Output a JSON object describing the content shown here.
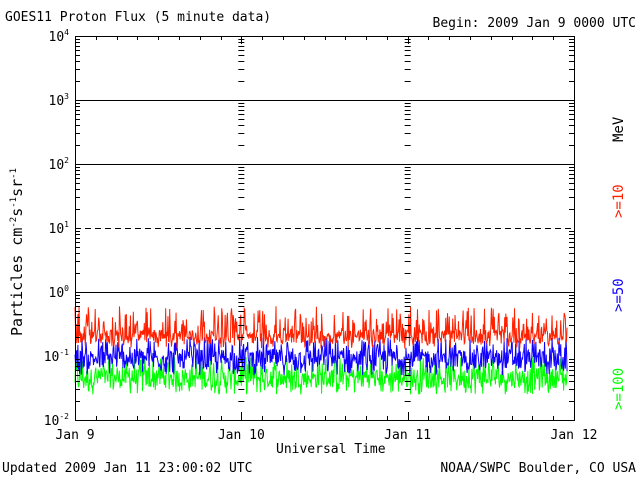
{
  "header": {
    "title": "GOES11 Proton Flux (5 minute data)",
    "begin": "Begin: 2009 Jan 9 0000 UTC"
  },
  "footer": {
    "updated": "Updated 2009 Jan 11 23:00:02 UTC",
    "credit": "NOAA/SWPC Boulder, CO USA"
  },
  "colors": {
    "ge10": "#ff2000",
    "ge50": "#1000ff",
    "ge100": "#00ff00",
    "axis": "#000000"
  },
  "chart_data": {
    "type": "line",
    "title": "GOES11 Proton Flux (5 minute data)",
    "xlabel": "Universal Time",
    "ylabel": "Particles cm⁻²s⁻¹sr⁻¹",
    "yscale": "log",
    "ylim": [
      0.01,
      10000
    ],
    "yticks": [
      {
        "value": 0.01,
        "base": "10",
        "exp": "-2"
      },
      {
        "value": 0.1,
        "base": "10",
        "exp": "-1"
      },
      {
        "value": 1,
        "base": "10",
        "exp": "0"
      },
      {
        "value": 10,
        "base": "10",
        "exp": "1"
      },
      {
        "value": 100,
        "base": "10",
        "exp": "2"
      },
      {
        "value": 1000,
        "base": "10",
        "exp": "3"
      },
      {
        "value": 10000,
        "base": "10",
        "exp": "4"
      }
    ],
    "x_categories": [
      "Jan 9",
      "Jan 10",
      "Jan 11",
      "Jan 12"
    ],
    "xlim": [
      "2009-01-09 00:00",
      "2009-01-12 00:00"
    ],
    "data_end": "2009-01-11 23:00",
    "reference_lines": [
      {
        "value": 1,
        "style": "solid"
      },
      {
        "value": 10,
        "style": "dashed"
      },
      {
        "value": 100,
        "style": "solid"
      },
      {
        "value": 1000,
        "style": "solid"
      }
    ],
    "legend_position": "right",
    "legend_unit": "MeV",
    "series": [
      {
        "name": ">=10",
        "color": "#ff2000",
        "typical_range": [
          0.13,
          0.6
        ],
        "median": 0.2
      },
      {
        "name": ">=50",
        "color": "#1000ff",
        "typical_range": [
          0.05,
          0.2
        ],
        "median": 0.09
      },
      {
        "name": ">=100",
        "color": "#00ff00",
        "typical_range": [
          0.025,
          0.1
        ],
        "median": 0.045
      }
    ]
  }
}
